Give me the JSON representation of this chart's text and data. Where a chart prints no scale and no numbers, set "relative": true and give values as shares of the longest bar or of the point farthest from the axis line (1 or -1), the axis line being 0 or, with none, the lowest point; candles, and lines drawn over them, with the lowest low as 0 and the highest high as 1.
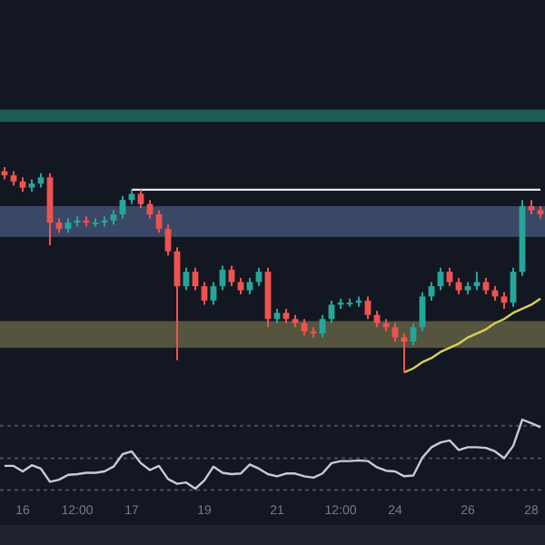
{
  "chart_data": [
    {
      "type": "candlestick",
      "relative": true,
      "categories": [
        null,
        null,
        null,
        null,
        null,
        null,
        null,
        null,
        null,
        null,
        null,
        null,
        null,
        null,
        null,
        null,
        null,
        null,
        null,
        null,
        null,
        null,
        null,
        null,
        null,
        null,
        null,
        null,
        null,
        null,
        null,
        null,
        null,
        null,
        null,
        null,
        null,
        null,
        null,
        null,
        null,
        null,
        null,
        null,
        null,
        null,
        null,
        null,
        null,
        null,
        null,
        null,
        null,
        null,
        null,
        null,
        null,
        null,
        null,
        null
      ],
      "ohlc": [
        [
          0.98,
          1,
          0.94,
          0.96
        ],
        [
          0.96,
          0.98,
          0.91,
          0.93
        ],
        [
          0.93,
          0.95,
          0.88,
          0.9
        ],
        [
          0.9,
          0.94,
          0.88,
          0.92
        ],
        [
          0.92,
          0.97,
          0.9,
          0.95
        ],
        [
          0.95,
          0.97,
          0.62,
          0.73
        ],
        [
          0.73,
          0.75,
          0.68,
          0.7
        ],
        [
          0.7,
          0.75,
          0.68,
          0.73
        ],
        [
          0.73,
          0.76,
          0.71,
          0.74
        ],
        [
          0.74,
          0.76,
          0.71,
          0.73
        ],
        [
          0.73,
          0.75,
          0.71,
          0.73
        ],
        [
          0.73,
          0.76,
          0.71,
          0.74
        ],
        [
          0.74,
          0.79,
          0.72,
          0.77
        ],
        [
          0.77,
          0.86,
          0.75,
          0.84
        ],
        [
          0.84,
          0.89,
          0.82,
          0.87
        ],
        [
          0.87,
          0.89,
          0.8,
          0.82
        ],
        [
          0.82,
          0.84,
          0.75,
          0.77
        ],
        [
          0.77,
          0.79,
          0.68,
          0.7
        ],
        [
          0.7,
          0.72,
          0.57,
          0.59
        ],
        [
          0.59,
          0.61,
          0.06,
          0.42
        ],
        [
          0.42,
          0.51,
          0.4,
          0.49
        ],
        [
          0.49,
          0.51,
          0.4,
          0.42
        ],
        [
          0.42,
          0.44,
          0.33,
          0.35
        ],
        [
          0.35,
          0.44,
          0.33,
          0.42
        ],
        [
          0.42,
          0.52,
          0.4,
          0.5
        ],
        [
          0.5,
          0.52,
          0.42,
          0.44
        ],
        [
          0.44,
          0.46,
          0.38,
          0.4
        ],
        [
          0.4,
          0.46,
          0.38,
          0.44
        ],
        [
          0.44,
          0.51,
          0.42,
          0.49
        ],
        [
          0.49,
          0.51,
          0.22,
          0.26
        ],
        [
          0.26,
          0.31,
          0.24,
          0.29
        ],
        [
          0.29,
          0.31,
          0.24,
          0.26
        ],
        [
          0.26,
          0.28,
          0.22,
          0.24
        ],
        [
          0.24,
          0.26,
          0.18,
          0.2
        ],
        [
          0.2,
          0.22,
          0.17,
          0.19
        ],
        [
          0.19,
          0.28,
          0.17,
          0.26
        ],
        [
          0.26,
          0.35,
          0.24,
          0.33
        ],
        [
          0.33,
          0.36,
          0.31,
          0.34
        ],
        [
          0.34,
          0.36,
          0.32,
          0.34
        ],
        [
          0.34,
          0.37,
          0.32,
          0.35
        ],
        [
          0.35,
          0.37,
          0.26,
          0.28
        ],
        [
          0.28,
          0.3,
          0.22,
          0.24
        ],
        [
          0.24,
          0.26,
          0.2,
          0.22
        ],
        [
          0.22,
          0.24,
          0.15,
          0.17
        ],
        [
          0.17,
          0.19,
          0,
          0.15
        ],
        [
          0.15,
          0.24,
          0.13,
          0.22
        ],
        [
          0.22,
          0.39,
          0.2,
          0.37
        ],
        [
          0.37,
          0.44,
          0.35,
          0.42
        ],
        [
          0.42,
          0.51,
          0.4,
          0.49
        ],
        [
          0.49,
          0.51,
          0.42,
          0.44
        ],
        [
          0.44,
          0.46,
          0.38,
          0.4
        ],
        [
          0.4,
          0.44,
          0.38,
          0.42
        ],
        [
          0.42,
          0.49,
          0.4,
          0.44
        ],
        [
          0.44,
          0.46,
          0.38,
          0.4
        ],
        [
          0.4,
          0.42,
          0.35,
          0.37
        ],
        [
          0.37,
          0.39,
          0.31,
          0.34
        ],
        [
          0.34,
          0.51,
          0.32,
          0.49
        ],
        [
          0.49,
          0.84,
          0.47,
          0.81
        ],
        [
          0.81,
          0.84,
          0.77,
          0.79
        ],
        [
          0.79,
          0.81,
          0.75,
          0.77
        ]
      ],
      "colors": [
        "#ef5350",
        "#ef5350",
        "#ef5350",
        "#26a69a",
        "#26a69a",
        "#ef5350",
        "#ef5350",
        "#26a69a",
        "#26a69a",
        "#ef5350",
        "#26a69a",
        "#26a69a",
        "#26a69a",
        "#26a69a",
        "#26a69a",
        "#ef5350",
        "#ef5350",
        "#ef5350",
        "#ef5350",
        "#ef5350",
        "#26a69a",
        "#ef5350",
        "#ef5350",
        "#26a69a",
        "#26a69a",
        "#ef5350",
        "#ef5350",
        "#26a69a",
        "#26a69a",
        "#ef5350",
        "#26a69a",
        "#ef5350",
        "#ef5350",
        "#ef5350",
        "#ef5350",
        "#26a69a",
        "#26a69a",
        "#26a69a",
        "#26a69a",
        "#26a69a",
        "#ef5350",
        "#ef5350",
        "#ef5350",
        "#ef5350",
        "#ef5350",
        "#26a69a",
        "#26a69a",
        "#26a69a",
        "#26a69a",
        "#ef5350",
        "#ef5350",
        "#26a69a",
        "#26a69a",
        "#ef5350",
        "#ef5350",
        "#ef5350",
        "#26a69a",
        "#26a69a",
        "#ef5350",
        "#ef5350"
      ],
      "series": [
        {
          "type": "line",
          "color": "#e6e6e6",
          "values": [
            null,
            null,
            null,
            null,
            null,
            null,
            null,
            null,
            null,
            null,
            null,
            null,
            null,
            null,
            0.89,
            0.89,
            0.89,
            0.89,
            0.89,
            0.89,
            0.89,
            0.89,
            0.89,
            0.89,
            0.89,
            0.89,
            0.89,
            0.89,
            0.89,
            0.89,
            0.89,
            0.89,
            0.89,
            0.89,
            0.89,
            0.89,
            0.89,
            0.89,
            0.89,
            0.89,
            0.89,
            0.89,
            0.89,
            0.89,
            0.89,
            0.89,
            0.89,
            0.89,
            0.89,
            0.89,
            0.89,
            0.89,
            0.89,
            0.89,
            0.89,
            0.89,
            0.89,
            0.89,
            0.89,
            0.89
          ]
        },
        {
          "type": "line",
          "color": "#d9cf55",
          "values": [
            null,
            null,
            null,
            null,
            null,
            null,
            null,
            null,
            null,
            null,
            null,
            null,
            null,
            null,
            null,
            null,
            null,
            null,
            null,
            null,
            null,
            null,
            null,
            null,
            null,
            null,
            null,
            null,
            null,
            null,
            null,
            null,
            null,
            null,
            null,
            null,
            null,
            null,
            null,
            null,
            null,
            null,
            null,
            null,
            0,
            0.02,
            0.05,
            0.07,
            0.1,
            0.12,
            0.14,
            0.17,
            0.19,
            0.21,
            0.24,
            0.26,
            0.29,
            0.31,
            0.33,
            0.36
          ]
        }
      ],
      "bands": [
        {
          "axis": "y",
          "from": 1.22,
          "to": 1.28,
          "color": "#1d5c52"
        },
        {
          "axis": "y",
          "from": 0.66,
          "to": 0.81,
          "color": "#3a4866"
        },
        {
          "axis": "y",
          "from": 0.12,
          "to": 0.25,
          "color": "#55543f"
        }
      ]
    },
    {
      "type": "line",
      "relative": true,
      "tick_labels": "x",
      "categories": [
        null,
        null,
        "16",
        null,
        null,
        null,
        null,
        null,
        "12:00",
        null,
        null,
        null,
        null,
        null,
        "17",
        null,
        null,
        null,
        null,
        null,
        null,
        null,
        "19",
        null,
        null,
        null,
        null,
        null,
        null,
        null,
        "21",
        null,
        null,
        null,
        null,
        null,
        null,
        "12:00",
        null,
        null,
        null,
        null,
        null,
        "24",
        null,
        null,
        null,
        null,
        null,
        null,
        null,
        "26",
        null,
        null,
        null,
        null,
        null,
        null,
        "28",
        null
      ],
      "series": [
        {
          "color": "#c8cbd3",
          "values": [
            0.33,
            0.33,
            0.25,
            0.34,
            0.29,
            0.1,
            0.13,
            0.2,
            0.21,
            0.23,
            0.23,
            0.25,
            0.32,
            0.5,
            0.54,
            0.37,
            0.27,
            0.33,
            0.14,
            0.07,
            0.09,
            0,
            0.12,
            0.32,
            0.23,
            0.21,
            0.22,
            0.35,
            0.29,
            0.21,
            0.18,
            0.22,
            0.22,
            0.18,
            0.16,
            0.22,
            0.37,
            0.4,
            0.4,
            0.41,
            0.4,
            0.31,
            0.26,
            0.25,
            0.18,
            0.19,
            0.45,
            0.6,
            0.67,
            0.7,
            0.56,
            0.6,
            0.6,
            0.59,
            0.54,
            0.44,
            0.62,
            1,
            0.95,
            0.89
          ]
        }
      ],
      "ref_lines": [
        {
          "axis": "y",
          "value": 0.91,
          "color": "#4a4e5a",
          "line_style": "dotted"
        },
        {
          "axis": "y",
          "value": 0.44,
          "color": "#4a4e5a",
          "line_style": "dotted"
        },
        {
          "axis": "y",
          "value": -0.02,
          "color": "#4a4e5a",
          "line_style": "dotted"
        }
      ]
    }
  ]
}
